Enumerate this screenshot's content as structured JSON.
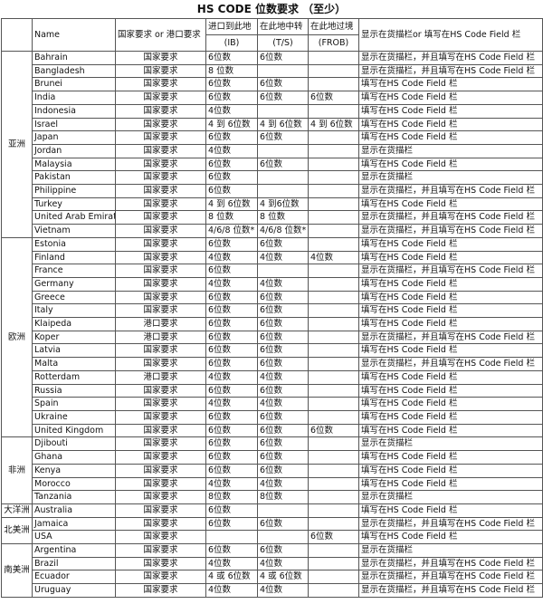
{
  "title": "HS CODE 位数要求 （至少）",
  "columns": [
    {
      "label": "Name"
    },
    {
      "label": "国家要求 or 港口要求"
    },
    {
      "label": "进口到此地",
      "sub": "(IB)"
    },
    {
      "label": "在此地中转",
      "sub": "(T/S)"
    },
    {
      "label": "在此地过境",
      "sub": "(FROB)"
    },
    {
      "label": "显示在货描栏or 填写在HS Code Field 栏"
    }
  ],
  "groups": [
    {
      "region": "亚洲",
      "rows": [
        [
          "Bahrain",
          "国家要求",
          "6位数",
          "6位数",
          null,
          "显示在货描栏，并且填写在HS Code Field 栏"
        ],
        [
          "Bangladesh",
          "国家要求",
          "8 位数",
          null,
          null,
          "显示在货描栏，并且填写在HS Code Field 栏"
        ],
        [
          "Brunei",
          "国家要求",
          "6位数",
          "6位数",
          null,
          "填写在HS Code Field 栏"
        ],
        [
          "India",
          "国家要求",
          "6位数",
          "6位数",
          "6位数",
          "填写在HS Code Field 栏"
        ],
        [
          "Indonesia",
          "国家要求",
          "4位数",
          null,
          null,
          "填写在HS Code Field 栏"
        ],
        [
          "Israel",
          "国家要求",
          "4 到 6位数",
          "4 到 6位数",
          "4 到 6位数",
          "填写在HS Code Field 栏"
        ],
        [
          "Japan",
          "国家要求",
          "6位数",
          "6位数",
          null,
          "填写在HS Code Field 栏"
        ],
        [
          "Jordan",
          "国家要求",
          "4位数",
          null,
          null,
          "显示在货描栏"
        ],
        [
          "Malaysia",
          "国家要求",
          "6位数",
          "6位数",
          null,
          "填写在HS Code Field 栏"
        ],
        [
          "Pakistan",
          "国家要求",
          "6位数",
          null,
          null,
          "显示在货描栏"
        ],
        [
          "Philippine",
          "国家要求",
          "6位数",
          null,
          null,
          "显示在货描栏，并且填写在HS Code Field 栏"
        ],
        [
          "Turkey",
          "国家要求",
          "4 到 6位数",
          "4 到6位数",
          null,
          "填写在HS Code Field 栏"
        ],
        [
          "United Arab Emirat",
          "国家要求",
          "8 位数",
          "8 位数",
          null,
          "显示在货描栏，并且填写在HS Code Field 栏"
        ],
        [
          "Vietnam",
          "国家要求",
          "4/6/8 位数*",
          "4/6/8 位数*",
          null,
          "显示在货描栏，并且填写在HS Code Field 栏"
        ]
      ]
    },
    {
      "region": "欧洲",
      "rows": [
        [
          "Estonia",
          "国家要求",
          "6位数",
          "6位数",
          null,
          "填写在HS Code Field 栏"
        ],
        [
          "Finland",
          "国家要求",
          "4位数",
          "4位数",
          "4位数",
          "填写在HS Code Field 栏"
        ],
        [
          "France",
          "国家要求",
          "6位数",
          null,
          null,
          "显示在货描栏，并且填写在HS Code Field 栏"
        ],
        [
          "Germany",
          "国家要求",
          "4位数",
          "4位数",
          null,
          "填写在HS Code Field 栏"
        ],
        [
          "Greece",
          "国家要求",
          "6位数",
          "6位数",
          null,
          "填写在HS Code Field 栏"
        ],
        [
          "Italy",
          "国家要求",
          "6位数",
          "6位数",
          null,
          "填写在HS Code Field 栏"
        ],
        [
          "Klaipeda",
          "港口要求",
          "6位数",
          "6位数",
          null,
          "填写在HS Code Field 栏"
        ],
        [
          "Koper",
          "港口要求",
          "6位数",
          "6位数",
          null,
          "显示在货描栏，并且填写在HS Code Field 栏"
        ],
        [
          "Latvia",
          "国家要求",
          "6位数",
          "6位数",
          null,
          "填写在HS Code Field 栏"
        ],
        [
          "Malta",
          "国家要求",
          "6位数",
          "6位数",
          null,
          "显示在货描栏，并且填写在HS Code Field 栏"
        ],
        [
          "Rotterdam",
          "港口要求",
          "4位数",
          "4位数",
          null,
          "填写在HS Code Field 栏"
        ],
        [
          "Russia",
          "国家要求",
          "6位数",
          "6位数",
          null,
          "填写在HS Code Field 栏"
        ],
        [
          "Spain",
          "国家要求",
          "4位数",
          "4位数",
          null,
          "填写在HS Code Field 栏"
        ],
        [
          "Ukraine",
          "国家要求",
          "6位数",
          "6位数",
          null,
          "填写在HS Code Field 栏"
        ],
        [
          "United Kingdom",
          "国家要求",
          "6位数",
          "6位数",
          "6位数",
          "填写在HS Code Field 栏"
        ]
      ]
    },
    {
      "region": "非洲",
      "rows": [
        [
          "Djibouti",
          "国家要求",
          "6位数",
          "6位数",
          null,
          "显示在货描栏"
        ],
        [
          "Ghana",
          "国家要求",
          "6位数",
          "6位数",
          null,
          "填写在HS Code Field 栏"
        ],
        [
          "Kenya",
          "国家要求",
          "6位数",
          "6位数",
          null,
          "填写在HS Code Field 栏"
        ],
        [
          "Morocco",
          "国家要求",
          "4位数",
          "4位数",
          null,
          "填写在HS Code Field 栏"
        ],
        [
          "Tanzania",
          "国家要求",
          "8位数",
          "8位数",
          null,
          "显示在货描栏"
        ]
      ]
    },
    {
      "region": "大洋洲",
      "rows": [
        [
          "Australia",
          "国家要求",
          "6位数",
          null,
          null,
          "填写在HS Code Field 栏"
        ]
      ]
    },
    {
      "region": "北美洲",
      "rows": [
        [
          "Jamaica",
          "国家要求",
          "6位数",
          "6位数",
          null,
          "显示在货描栏，并且填写在HS Code Field 栏"
        ],
        [
          "USA",
          "国家要求",
          null,
          null,
          "6位数",
          "填写在HS Code Field 栏"
        ]
      ]
    },
    {
      "region": "南美洲",
      "rows": [
        [
          "Argentina",
          "国家要求",
          "6位数",
          "6位数",
          null,
          "显示在货描栏"
        ],
        [
          "Brazil",
          "国家要求",
          "4位数",
          "4位数",
          null,
          "显示在货描栏，并且填写在HS Code Field 栏"
        ],
        [
          "Ecuador",
          "国家要求",
          "4 或 6位数",
          "4 或 6位数",
          null,
          "显示在货描栏，并且填写在HS Code Field 栏"
        ],
        [
          "Uruguay",
          "国家要求",
          "4位数",
          "4位数",
          null,
          "显示在货描栏，并且填写在HS Code Field 栏"
        ]
      ]
    }
  ]
}
